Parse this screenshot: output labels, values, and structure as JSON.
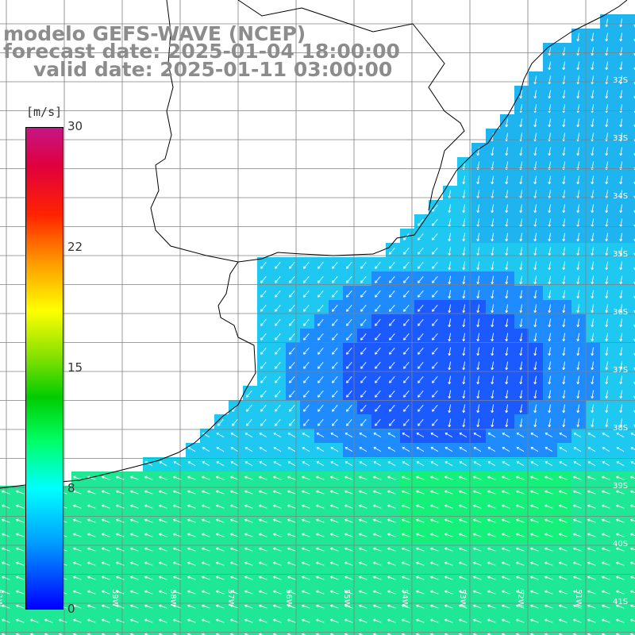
{
  "title": {
    "line1": "modelo GEFS-WAVE (NCEP)",
    "line2": "forecast date: 2025-01-04 18:00:00",
    "line3": "valid date: 2025-01-11 03:00:00"
  },
  "colorbar": {
    "unit": "[m/s]",
    "ticks": [
      "30",
      "22",
      "15",
      "8",
      "0"
    ],
    "min": 0,
    "max": 30,
    "colors": [
      "#0000ff",
      "#00a0ff",
      "#00ffff",
      "#00ff64",
      "#00cc00",
      "#80e000",
      "#ffff00",
      "#ff9900",
      "#ff2200",
      "#e0003c",
      "#c71585"
    ]
  },
  "map": {
    "lat_labels": [
      "32S",
      "33S",
      "34S",
      "35S",
      "36S",
      "37S",
      "38S",
      "39S",
      "40S",
      "41S"
    ],
    "lon_labels": [
      "61W",
      "60W",
      "59W",
      "58W",
      "57W",
      "56W",
      "55W",
      "54W",
      "53W",
      "52W",
      "51W"
    ],
    "land_color": "#ffffff",
    "grid_color": "#808080",
    "coast_color": "#000000",
    "arrow_color": "#ffffff"
  }
}
